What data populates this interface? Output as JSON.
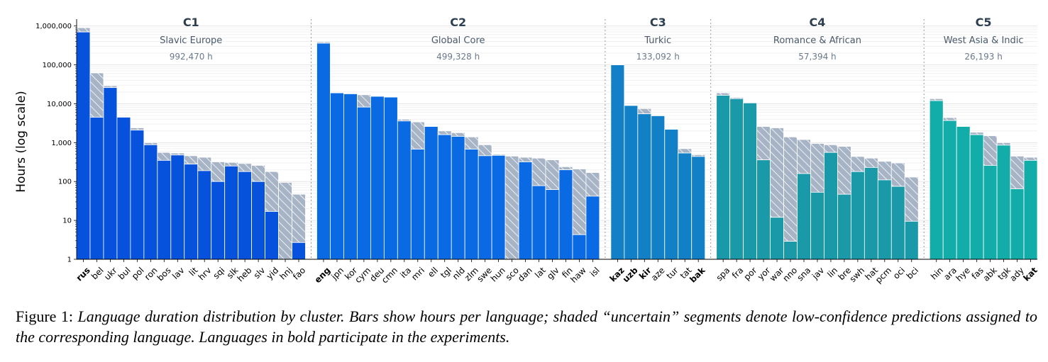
{
  "chart_data": {
    "type": "bar",
    "stacked": true,
    "y_scale": "log",
    "ylabel": "Hours (log scale)",
    "ylim": [
      1,
      1500000
    ],
    "y_ticks": [
      {
        "value": 1,
        "label": "1"
      },
      {
        "value": 10,
        "label": "10"
      },
      {
        "value": 100,
        "label": "100"
      },
      {
        "value": 1000,
        "label": "1,000"
      },
      {
        "value": 10000,
        "label": "10,000"
      },
      {
        "value": 100000,
        "label": "100,000"
      },
      {
        "value": 1000000,
        "label": "1,000,000"
      }
    ],
    "grid": "horizontal-minor",
    "series_names": [
      "confident",
      "uncertain"
    ],
    "clusters": [
      {
        "id": "C1",
        "name": "Slavic Europe",
        "total": "992,470 h",
        "color": "#0652dd",
        "languages": [
          {
            "code": "rus",
            "bold": true,
            "confident": 700000,
            "total": 900000
          },
          {
            "code": "bel",
            "bold": false,
            "confident": 4500,
            "total": 62000
          },
          {
            "code": "ukr",
            "bold": false,
            "confident": 26000,
            "total": 29000
          },
          {
            "code": "bul",
            "bold": false,
            "confident": 4500,
            "total": 4500
          },
          {
            "code": "pol",
            "bold": false,
            "confident": 2100,
            "total": 2400
          },
          {
            "code": "ron",
            "bold": false,
            "confident": 880,
            "total": 1000
          },
          {
            "code": "bos",
            "bold": false,
            "confident": 350,
            "total": 560
          },
          {
            "code": "lav",
            "bold": false,
            "confident": 480,
            "total": 540
          },
          {
            "code": "lit",
            "bold": false,
            "confident": 280,
            "total": 460
          },
          {
            "code": "hrv",
            "bold": false,
            "confident": 190,
            "total": 420
          },
          {
            "code": "sqi",
            "bold": false,
            "confident": 100,
            "total": 320
          },
          {
            "code": "slk",
            "bold": false,
            "confident": 250,
            "total": 310
          },
          {
            "code": "heb",
            "bold": false,
            "confident": 180,
            "total": 290
          },
          {
            "code": "slv",
            "bold": false,
            "confident": 100,
            "total": 260
          },
          {
            "code": "yid",
            "bold": false,
            "confident": 17,
            "total": 180
          },
          {
            "code": "hnj",
            "bold": false,
            "confident": 0,
            "total": 95
          },
          {
            "code": "fao",
            "bold": false,
            "confident": 2.7,
            "total": 47
          }
        ]
      },
      {
        "id": "C2",
        "name": "Global Core",
        "total": "499,328 h",
        "color": "#0a6ae3",
        "languages": [
          {
            "code": "eng",
            "bold": true,
            "confident": 360000,
            "total": 390000
          },
          {
            "code": "jpn",
            "bold": false,
            "confident": 19000,
            "total": 19000
          },
          {
            "code": "kor",
            "bold": false,
            "confident": 18000,
            "total": 18000
          },
          {
            "code": "cym",
            "bold": false,
            "confident": 8200,
            "total": 17000
          },
          {
            "code": "deu",
            "bold": false,
            "confident": 15500,
            "total": 15500
          },
          {
            "code": "cmn",
            "bold": false,
            "confident": 14800,
            "total": 14800
          },
          {
            "code": "ita",
            "bold": false,
            "confident": 3600,
            "total": 4000
          },
          {
            "code": "mri",
            "bold": false,
            "confident": 680,
            "total": 3400
          },
          {
            "code": "ell",
            "bold": false,
            "confident": 2600,
            "total": 2600
          },
          {
            "code": "tgl",
            "bold": false,
            "confident": 1600,
            "total": 2000
          },
          {
            "code": "nld",
            "bold": false,
            "confident": 1450,
            "total": 1800
          },
          {
            "code": "zlm",
            "bold": false,
            "confident": 680,
            "total": 1400
          },
          {
            "code": "swe",
            "bold": false,
            "confident": 460,
            "total": 880
          },
          {
            "code": "hun",
            "bold": false,
            "confident": 470,
            "total": 500
          },
          {
            "code": "sco",
            "bold": false,
            "confident": 0,
            "total": 450
          },
          {
            "code": "dan",
            "bold": false,
            "confident": 320,
            "total": 420
          },
          {
            "code": "lat",
            "bold": false,
            "confident": 78,
            "total": 400
          },
          {
            "code": "glv",
            "bold": false,
            "confident": 62,
            "total": 360
          },
          {
            "code": "fin",
            "bold": false,
            "confident": 200,
            "total": 240
          },
          {
            "code": "haw",
            "bold": false,
            "confident": 4.3,
            "total": 210
          },
          {
            "code": "isl",
            "bold": false,
            "confident": 42,
            "total": 170
          }
        ]
      },
      {
        "id": "C3",
        "name": "Turkic",
        "total": "133,092 h",
        "color": "#1280c6",
        "languages": [
          {
            "code": "kaz",
            "bold": true,
            "confident": 100000,
            "total": 100000
          },
          {
            "code": "uzb",
            "bold": true,
            "confident": 9000,
            "total": 9000
          },
          {
            "code": "kir",
            "bold": true,
            "confident": 5500,
            "total": 7500
          },
          {
            "code": "aze",
            "bold": false,
            "confident": 4900,
            "total": 4900
          },
          {
            "code": "tur",
            "bold": false,
            "confident": 2200,
            "total": 2200
          },
          {
            "code": "tat",
            "bold": false,
            "confident": 540,
            "total": 700
          },
          {
            "code": "bak",
            "bold": true,
            "confident": 440,
            "total": 490
          }
        ]
      },
      {
        "id": "C4",
        "name": "Romance & African",
        "total": "57,394 h",
        "color": "#1a9aa8",
        "languages": [
          {
            "code": "spa",
            "bold": false,
            "confident": 16500,
            "total": 19000
          },
          {
            "code": "fra",
            "bold": false,
            "confident": 13500,
            "total": 14500
          },
          {
            "code": "por",
            "bold": false,
            "confident": 10500,
            "total": 10500
          },
          {
            "code": "yor",
            "bold": false,
            "confident": 360,
            "total": 2600
          },
          {
            "code": "war",
            "bold": false,
            "confident": 12,
            "total": 2400
          },
          {
            "code": "nno",
            "bold": false,
            "confident": 2.9,
            "total": 1400
          },
          {
            "code": "sna",
            "bold": false,
            "confident": 160,
            "total": 1200
          },
          {
            "code": "jav",
            "bold": false,
            "confident": 53,
            "total": 950
          },
          {
            "code": "lin",
            "bold": false,
            "confident": 560,
            "total": 880
          },
          {
            "code": "bre",
            "bold": false,
            "confident": 47,
            "total": 800
          },
          {
            "code": "swh",
            "bold": false,
            "confident": 180,
            "total": 440
          },
          {
            "code": "hat",
            "bold": false,
            "confident": 230,
            "total": 400
          },
          {
            "code": "pcm",
            "bold": false,
            "confident": 110,
            "total": 330
          },
          {
            "code": "oci",
            "bold": false,
            "confident": 75,
            "total": 300
          },
          {
            "code": "bci",
            "bold": false,
            "confident": 9.5,
            "total": 130
          }
        ]
      },
      {
        "id": "C5",
        "name": "West Asia & Indic",
        "total": "26,193 h",
        "color": "#13ada9",
        "languages": [
          {
            "code": "hin",
            "bold": false,
            "confident": 12000,
            "total": 13500
          },
          {
            "code": "ara",
            "bold": false,
            "confident": 3700,
            "total": 4400
          },
          {
            "code": "hye",
            "bold": false,
            "confident": 2600,
            "total": 2600
          },
          {
            "code": "fas",
            "bold": false,
            "confident": 1600,
            "total": 1850
          },
          {
            "code": "abk",
            "bold": false,
            "confident": 260,
            "total": 1500
          },
          {
            "code": "tgk",
            "bold": false,
            "confident": 860,
            "total": 1000
          },
          {
            "code": "ady",
            "bold": false,
            "confident": 65,
            "total": 450
          },
          {
            "code": "kat",
            "bold": true,
            "confident": 350,
            "total": 420
          }
        ]
      }
    ]
  },
  "caption": {
    "lead": "Figure 1:",
    "text": "Language duration distribution by cluster.  Bars show hours per language; shaded “uncertain” segments denote low-confidence predictions assigned to the corresponding language. Languages in bold participate in the experiments."
  }
}
